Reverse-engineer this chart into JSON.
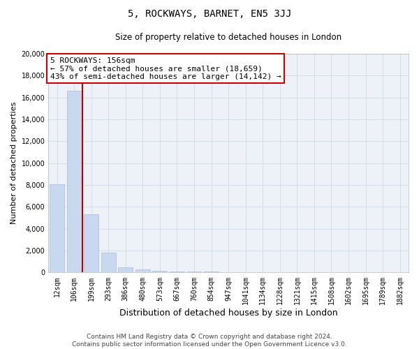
{
  "title1": "5, ROCKWAYS, BARNET, EN5 3JJ",
  "title2": "Size of property relative to detached houses in London",
  "xlabel": "Distribution of detached houses by size in London",
  "ylabel": "Number of detached properties",
  "categories": [
    "12sqm",
    "106sqm",
    "199sqm",
    "293sqm",
    "386sqm",
    "480sqm",
    "573sqm",
    "667sqm",
    "760sqm",
    "854sqm",
    "947sqm",
    "1041sqm",
    "1134sqm",
    "1228sqm",
    "1321sqm",
    "1415sqm",
    "1508sqm",
    "1602sqm",
    "1695sqm",
    "1789sqm",
    "1882sqm"
  ],
  "values": [
    8050,
    16600,
    5300,
    1820,
    500,
    280,
    170,
    120,
    90,
    70,
    50,
    30,
    20,
    15,
    10,
    8,
    6,
    5,
    4,
    3,
    2
  ],
  "bar_color": "#c8d8ee",
  "bar_edge_color": "#aabbd8",
  "vline_color": "#bb0000",
  "annotation_line1": "5 ROCKWAYS: 156sqm",
  "annotation_line2": "← 57% of detached houses are smaller (18,659)",
  "annotation_line3": "43% of semi-detached houses are larger (14,142) →",
  "annotation_box_color": "#cc0000",
  "ylim": [
    0,
    20000
  ],
  "yticks": [
    0,
    2000,
    4000,
    6000,
    8000,
    10000,
    12000,
    14000,
    16000,
    18000,
    20000
  ],
  "footer1": "Contains HM Land Registry data © Crown copyright and database right 2024.",
  "footer2": "Contains public sector information licensed under the Open Government Licence v3.0.",
  "background_color": "#eef2f8",
  "grid_color": "#d0d8e8",
  "title1_fontsize": 10,
  "title2_fontsize": 8.5,
  "xlabel_fontsize": 9,
  "ylabel_fontsize": 8,
  "tick_fontsize": 7,
  "annotation_fontsize": 8,
  "footer_fontsize": 6.5
}
